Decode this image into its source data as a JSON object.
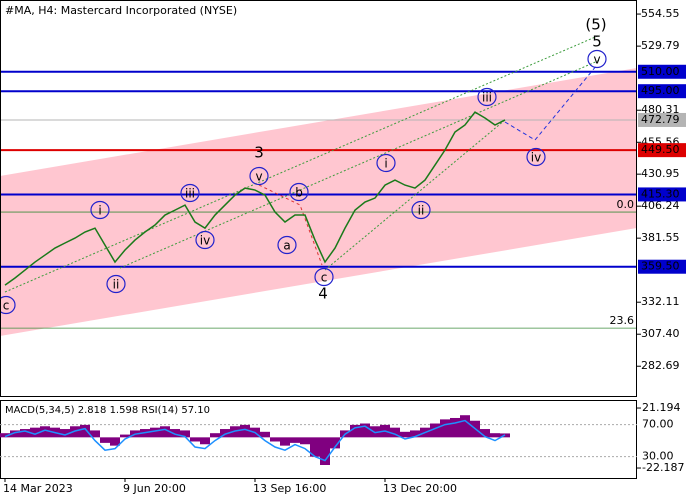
{
  "chart_data": {
    "type": "line",
    "title": "#MA, H4:  Mastercard Incorporated (NYSE)",
    "categories": [
      "14 Mar 2023",
      null,
      null,
      null,
      null,
      null,
      null,
      null,
      null,
      null,
      null,
      null,
      "9 Jun 20:00",
      null,
      null,
      null,
      null,
      null,
      null,
      null,
      null,
      null,
      null,
      null,
      null,
      "13 Sep 16:00",
      null,
      null,
      null,
      null,
      null,
      null,
      null,
      null,
      null,
      null,
      null,
      null,
      "13 Dec 20:00",
      null,
      null,
      null,
      null,
      null,
      null,
      null,
      null,
      null,
      null,
      null,
      null
    ],
    "series": [
      {
        "color": "#1a7a1a",
        "values": [
          345.3,
          350.8,
          356.9,
          363.1,
          368.5,
          373.9,
          377.8,
          381.6,
          386.3,
          389.3,
          376.2,
          363.1,
          372.4,
          380.1,
          386.3,
          391.7,
          399.4,
          403.2,
          407.1,
          394.0,
          389.3,
          399.4,
          407.1,
          414.8,
          420.2,
          418.7,
          414.8,
          401.7,
          394.0,
          399.4,
          399.4,
          380.1,
          363.1,
          373.9,
          389.3,
          403.2,
          409.4,
          412.5,
          422.5,
          426.4,
          422.5,
          420.2,
          426.4,
          438.0,
          449.6,
          463.5,
          468.9,
          478.9,
          474.3,
          468.9,
          472.79
        ]
      }
    ],
    "ylim": [
      259.7,
      565.4
    ],
    "yticks": [
      554.55,
      529.79,
      480.31,
      455.56,
      430.95,
      406.24,
      381.55,
      332.11,
      {
        "value": 307.4,
        "label": "307.40"
      },
      282.69
    ],
    "levels": [
      {
        "value": 510,
        "label": "510.00",
        "color": "#0000cc"
      },
      {
        "value": 495,
        "label": "495.00",
        "color": "#0000cc"
      },
      {
        "value": 449.5,
        "label": "449.50",
        "color": "#dd0000"
      },
      {
        "value": 415.3,
        "label": "415.30",
        "color": "#0000cc"
      },
      {
        "value": 359.5,
        "label": "359.50",
        "color": "#0000cc"
      }
    ],
    "current": {
      "value": 472.79,
      "color": "#b4b4b4"
    },
    "fib_levels": [
      {
        "value": 401.7,
        "label": "0.0",
        "color": "#3c8c3c"
      },
      {
        "value": 312.1,
        "label": "23.6",
        "color": "#3c8c3c"
      }
    ],
    "waves": [
      {
        "text": "c",
        "color": "#2222cc",
        "circled": true
      },
      {
        "text": "i",
        "color": "#2222cc",
        "circled": true
      },
      {
        "text": "ii",
        "color": "#2222cc",
        "circled": true
      },
      {
        "text": "iii",
        "color": "#2222cc",
        "circled": true
      },
      {
        "text": "iv",
        "color": "#2222cc",
        "circled": true
      },
      {
        "text": "v",
        "color": "#2222cc",
        "circled": true
      },
      {
        "text": "a",
        "color": "#2222cc",
        "circled": true
      },
      {
        "text": "b",
        "color": "#2222cc",
        "circled": true
      },
      {
        "text": "c",
        "color": "#2222cc",
        "circled": true
      },
      {
        "text": "i",
        "color": "#2222cc",
        "circled": true
      },
      {
        "text": "ii",
        "color": "#2222cc",
        "circled": true
      },
      {
        "text": "iii",
        "color": "#2222cc",
        "circled": true
      },
      {
        "text": "iv",
        "color": "#2222cc",
        "circled": true
      },
      {
        "text": "v",
        "color": "#2222cc",
        "circled": true
      },
      {
        "text": "3",
        "color": "#b03030",
        "circled": false
      },
      {
        "text": "4",
        "color": "#b03030",
        "circled": false
      },
      {
        "text": "5",
        "color": "#b03030",
        "circled": false
      },
      {
        "text": "(5)",
        "color": "#3c8c3c",
        "circled": false
      }
    ],
    "indicator": {
      "title": "MACD(5,34,5) 2.818 1.598 RSI(14) 57.10",
      "ylim": [
        -29.4,
        27.0
      ],
      "yticks": [
        21.194,
        -22.187
      ],
      "y2lim": [
        3.3,
        100.7
      ],
      "y2ticks": [
        {
          "value": 70,
          "label": "70.00"
        },
        {
          "value": 30,
          "label": "30.00"
        }
      ],
      "macd": {
        "color": "#800080",
        "values": [
          3,
          5,
          6,
          7,
          8,
          7,
          6,
          8,
          9,
          5,
          -4,
          -6,
          2,
          5,
          6,
          7,
          8,
          6,
          5,
          -3,
          -5,
          3,
          6,
          8,
          9,
          7,
          4,
          -3,
          -6,
          -4,
          -5,
          -14,
          -20,
          -8,
          5,
          9,
          10,
          8,
          9,
          7,
          4,
          5,
          7,
          10,
          13,
          14,
          16,
          12,
          6,
          3,
          2.818
        ]
      },
      "rsi": {
        "color": "#1e90ff",
        "axis": "y2",
        "values": [
          55,
          60,
          62,
          58,
          63,
          60,
          57,
          62,
          65,
          50,
          38,
          40,
          52,
          58,
          60,
          62,
          64,
          58,
          55,
          42,
          40,
          50,
          58,
          62,
          64,
          60,
          50,
          42,
          38,
          45,
          40,
          30,
          25,
          42,
          58,
          66,
          68,
          60,
          62,
          58,
          52,
          55,
          60,
          65,
          70,
          72,
          75,
          65,
          55,
          50,
          57.1
        ]
      }
    }
  }
}
